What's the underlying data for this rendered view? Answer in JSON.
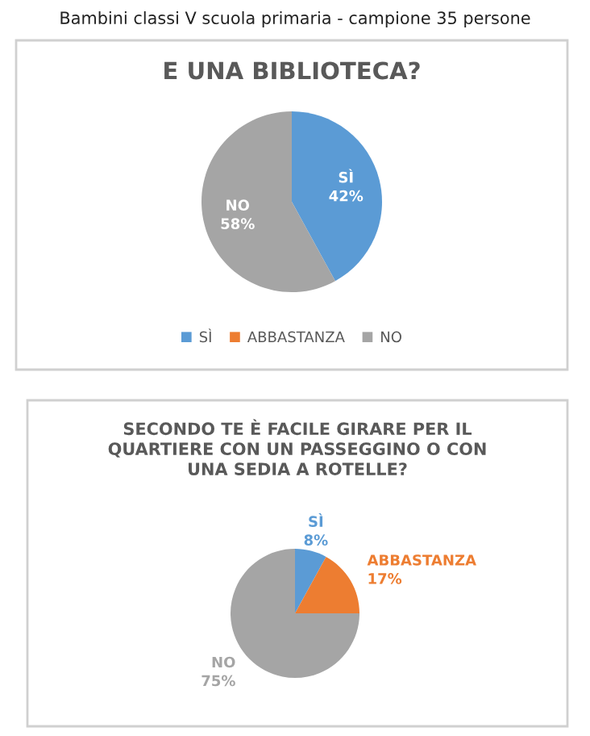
{
  "chart_data": [
    {
      "type": "pie",
      "title": "E UNA BIBLIOTECA?",
      "annotations": [
        "Bambini classi V scuola primaria - campione 35 persone"
      ],
      "categories": [
        "SÌ",
        "ABBASTANZA",
        "NO"
      ],
      "values": [
        42,
        0,
        58
      ],
      "colors": [
        "#5b9bd5",
        "#ed7d31",
        "#a5a5a5"
      ],
      "value_labels": [
        "42%",
        null,
        "58%"
      ],
      "legend": "bottom"
    },
    {
      "type": "pie",
      "title": "SECONDO TE È FACILE GIRARE PER IL\nQUARTIERE CON UN PASSEGGINO O CON\nUNA SEDIA A ROTELLE?",
      "categories": [
        "SÌ",
        "ABBASTANZA",
        "NO"
      ],
      "values": [
        8,
        17,
        75
      ],
      "colors": [
        "#5b9bd5",
        "#ed7d31",
        "#a5a5a5"
      ],
      "value_labels": [
        "8%",
        "17%",
        "75%"
      ],
      "legend": false
    }
  ]
}
